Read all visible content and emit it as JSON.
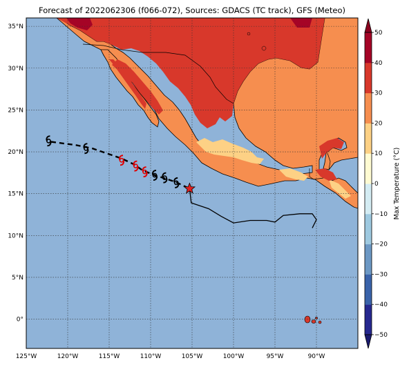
{
  "title": "Forecast of 2022062306 (f066-072), Sources: GDACS (TC track), GFS (Meteo)",
  "map": {
    "lon_range": [
      -125,
      -85
    ],
    "lat_range": [
      -3.5,
      36
    ],
    "lon_ticks": [
      -125,
      -120,
      -115,
      -110,
      -105,
      -100,
      -95,
      -90
    ],
    "lon_tick_labels": [
      "125°W",
      "120°W",
      "115°W",
      "110°W",
      "105°W",
      "100°W",
      "95°W",
      "90°W"
    ],
    "lat_ticks": [
      0,
      5,
      10,
      15,
      20,
      25,
      30,
      35
    ],
    "lat_tick_labels": [
      "0°",
      "5°N",
      "10°N",
      "15°N",
      "20°N",
      "25°N",
      "30°N",
      "35°N"
    ],
    "gridlines": true,
    "ocean_color": "#8fb3d8"
  },
  "colorbar": {
    "label": "Max Temperature (°C)",
    "ticks": [
      -50,
      -40,
      -30,
      -20,
      -10,
      0,
      10,
      20,
      30,
      40,
      50
    ],
    "tick_labels": [
      "−50",
      "−40",
      "−30",
      "−20",
      "−10",
      "0",
      "10",
      "20",
      "30",
      "40",
      "50"
    ],
    "colors": [
      "#26288f",
      "#3a63aa",
      "#6c98c4",
      "#9ec9e0",
      "#d4ecf3",
      "#fffbd2",
      "#fdd185",
      "#f68e4f",
      "#d8382b",
      "#a50426"
    ]
  },
  "track": {
    "past": [
      [
        -105.3,
        15.6
      ],
      [
        -105.1,
        13.9
      ],
      [
        -103.0,
        13.2
      ],
      [
        -101.5,
        12.3
      ],
      [
        -100.0,
        11.5
      ],
      [
        -98.0,
        11.8
      ],
      [
        -96.0,
        11.8
      ],
      [
        -95.0,
        11.6
      ],
      [
        -94.0,
        12.4
      ],
      [
        -92.0,
        12.6
      ],
      [
        -90.5,
        12.6
      ],
      [
        -90.0,
        11.9
      ],
      [
        -90.5,
        10.9
      ]
    ],
    "forecast": [
      [
        -122.0,
        21.2
      ],
      [
        -119.0,
        20.8
      ],
      [
        -117.0,
        20.4
      ],
      [
        -113.5,
        19.2
      ],
      [
        -112.0,
        18.5
      ],
      [
        -111.0,
        17.8
      ],
      [
        -109.5,
        17.2
      ],
      [
        -108.2,
        16.8
      ],
      [
        -107.0,
        16.4
      ],
      [
        -105.3,
        15.6
      ]
    ],
    "current_position": [
      -105.3,
      15.6
    ],
    "symbols": [
      {
        "lon": -122.3,
        "lat": 21.3,
        "color": "#000000"
      },
      {
        "lon": -117.8,
        "lat": 20.4,
        "color": "#000000"
      },
      {
        "lon": -113.5,
        "lat": 19.0,
        "color": "#e00000"
      },
      {
        "lon": -111.8,
        "lat": 18.3,
        "color": "#e00000"
      },
      {
        "lon": -110.7,
        "lat": 17.6,
        "color": "#e00000"
      },
      {
        "lon": -109.5,
        "lat": 17.2,
        "color": "#000000"
      },
      {
        "lon": -108.3,
        "lat": 16.9,
        "color": "#000000"
      },
      {
        "lon": -106.9,
        "lat": 16.3,
        "color": "#000000"
      }
    ],
    "star_color": "#e02020"
  }
}
